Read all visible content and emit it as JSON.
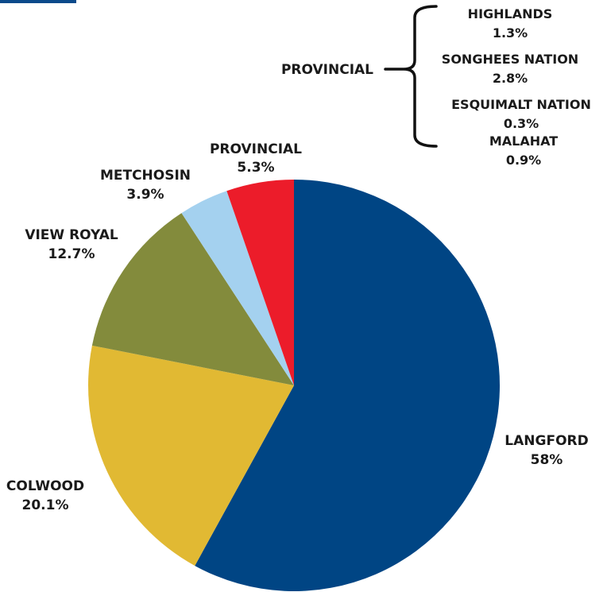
{
  "chart_data": {
    "type": "pie",
    "title": "",
    "slices": [
      {
        "label": "LANGFORD",
        "value": 58,
        "value_label": "58%",
        "color": "#004584"
      },
      {
        "label": "COLWOOD",
        "value": 20.1,
        "value_label": "20.1%",
        "color": "#e1b933"
      },
      {
        "label": "VIEW ROYAL",
        "value": 12.7,
        "value_label": "12.7%",
        "color": "#838b3c"
      },
      {
        "label": "METCHOSIN",
        "value": 3.9,
        "value_label": "3.9%",
        "color": "#a4d1ef"
      },
      {
        "label": "PROVINCIAL",
        "value": 5.3,
        "value_label": "5.3%",
        "color": "#ec1c2a"
      }
    ],
    "provincial_breakdown": {
      "label": "PROVINCIAL",
      "items": [
        {
          "label": "HIGHLANDS",
          "value": 1.3,
          "value_label": "1.3%"
        },
        {
          "label": "SONGHEES NATION",
          "value": 2.8,
          "value_label": "2.8%"
        },
        {
          "label": "ESQUIMALT NATION",
          "value": 0.3,
          "value_label": "0.3%"
        },
        {
          "label": "MALAHAT",
          "value": 0.9,
          "value_label": "0.9%"
        }
      ]
    }
  }
}
